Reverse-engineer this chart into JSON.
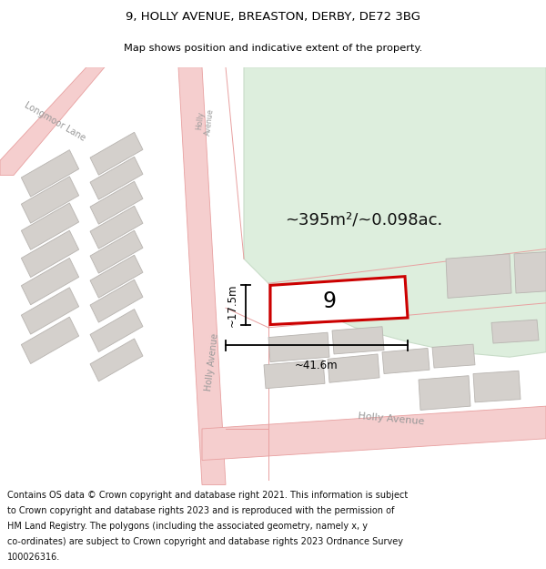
{
  "title": "9, HOLLY AVENUE, BREASTON, DERBY, DE72 3BG",
  "subtitle": "Map shows position and indicative extent of the property.",
  "footer": "Contains OS data © Crown copyright and database right 2021. This information is subject to Crown copyright and database rights 2023 and is reproduced with the permission of HM Land Registry. The polygons (including the associated geometry, namely x, y co-ordinates) are subject to Crown copyright and database rights 2023 Ordnance Survey 100026316.",
  "map_bg": "#f2f0eb",
  "road_color": "#f5cece",
  "road_edge": "#e8a0a0",
  "building_fill": "#d4d0cc",
  "building_edge": "#b8b4b0",
  "green_fill": "#ddeedd",
  "green_edge": "#c8dcc8",
  "prop_fill": "#ffffff",
  "prop_edge": "#cc0000",
  "area_label": "~395m²/~0.098ac.",
  "width_label": "~41.6m",
  "height_label": "~17.5m",
  "prop_num": "9"
}
